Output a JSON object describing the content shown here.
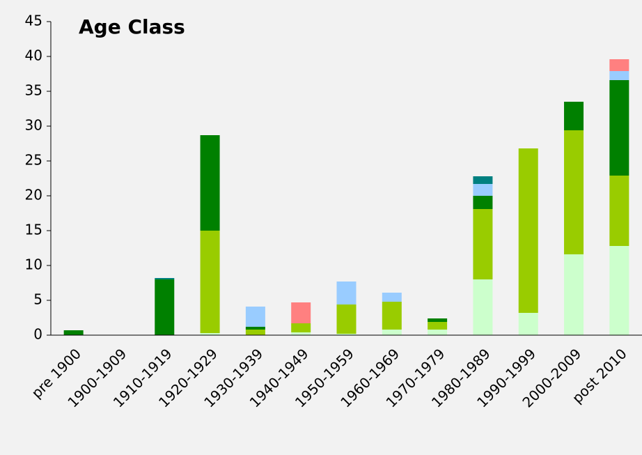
{
  "chart_data": {
    "type": "bar",
    "stacked": true,
    "title": "Age Class",
    "categories": [
      "pre 1900",
      "1900-1909",
      "1910-1919",
      "1920-1929",
      "1930-1939",
      "1940-1949",
      "1950-1959",
      "1960-1969",
      "1970-1979",
      "1980-1989",
      "1990-1999",
      "2000-2009",
      "post 2010"
    ],
    "series": [
      {
        "color": "#ccffcc",
        "values": [
          0,
          0,
          0,
          0.3,
          0,
          0.4,
          0.2,
          0.8,
          0.8,
          8.0,
          3.2,
          11.6,
          12.8
        ]
      },
      {
        "color": "#99cc00",
        "values": [
          0,
          0,
          0,
          14.7,
          0.8,
          1.3,
          4.2,
          4.0,
          1.1,
          10.1,
          23.6,
          17.8,
          10.1
        ]
      },
      {
        "color": "#008000",
        "values": [
          0.7,
          0,
          8.0,
          13.7,
          0.4,
          0,
          0,
          0,
          0.5,
          1.9,
          0,
          4.1,
          13.7
        ]
      },
      {
        "color": "#99ccff",
        "values": [
          0,
          0,
          0,
          0,
          2.9,
          0,
          3.3,
          1.3,
          0,
          1.7,
          0,
          0,
          1.3
        ]
      },
      {
        "color": "#ff8080",
        "values": [
          0,
          0,
          0,
          0,
          0,
          3.0,
          0,
          0,
          0,
          0,
          0,
          0,
          1.7
        ]
      },
      {
        "color": "#008080",
        "values": [
          0,
          0,
          0.2,
          0,
          0,
          0,
          0,
          0,
          0,
          1.1,
          0,
          0,
          0
        ]
      }
    ],
    "ylim": [
      0,
      45
    ],
    "yticks": [
      0,
      5,
      10,
      15,
      20,
      25,
      30,
      35,
      40,
      45
    ]
  }
}
